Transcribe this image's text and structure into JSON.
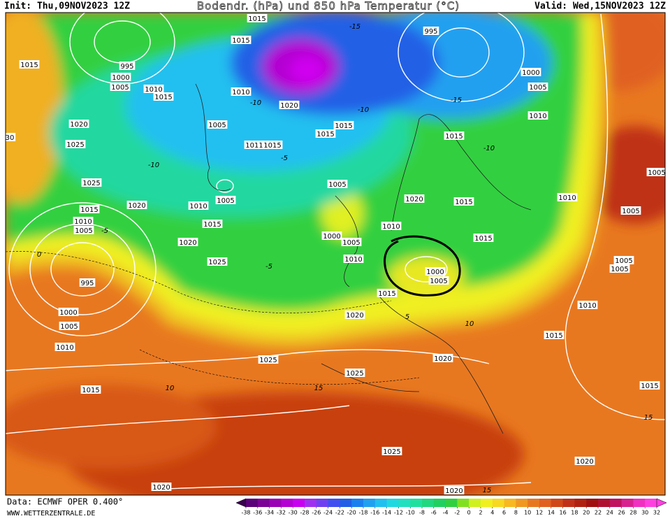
{
  "header": {
    "init": "Init: Thu,09NOV2023 12Z",
    "title": "Bodendr. (hPa) und 850 hPa Temperatur (°C)",
    "valid": "Valid: Wed,15NOV2023 12Z"
  },
  "footer": {
    "data": "Data: ECMWF OPER 0.400°",
    "site": "WWW.WETTERZENTRALE.DE"
  },
  "map": {
    "isobar_labels": [
      "1015",
      "1015",
      "995",
      "1015",
      "995",
      "1000",
      "1005",
      "1010",
      "1015",
      "1010",
      "1000",
      "1005",
      "1020",
      "1010",
      "1020",
      "1005",
      "1015",
      "1015",
      "1015",
      "1025",
      "1011",
      "1015",
      "1005",
      "1025",
      "1005",
      "1005",
      "1020",
      "1010",
      "1020",
      "1015",
      "1010",
      "1015",
      "1005",
      "1015",
      "1010",
      "1005",
      "1010",
      "1000",
      "1005",
      "1015",
      "1020",
      "1010",
      "1025",
      "1005",
      "1005",
      "1000",
      "995",
      "1005",
      "1015",
      "1010",
      "1000",
      "1020",
      "1005",
      "1015",
      "1010",
      "1020",
      "1025",
      "1025",
      "1015",
      "1015",
      "1025",
      "1020",
      "1020",
      "1020",
      "30"
    ],
    "temperature_labels": [
      "-15",
      "-15",
      "-10",
      "-10",
      "-10",
      "-5",
      "-10",
      "-5",
      "0",
      "-5",
      "5",
      "10",
      "10",
      "15",
      "15",
      "15"
    ]
  },
  "colorbar": {
    "ticks": [
      -38,
      -36,
      -34,
      -32,
      -30,
      -28,
      -26,
      -24,
      -22,
      -20,
      -18,
      -16,
      -14,
      -12,
      -10,
      -8,
      -6,
      -4,
      -2,
      0,
      2,
      4,
      6,
      8,
      10,
      12,
      14,
      16,
      18,
      20,
      22,
      24,
      26,
      28,
      30,
      32
    ],
    "colors": [
      "#3a0050",
      "#5a0078",
      "#7a0096",
      "#9a00b4",
      "#b400d2",
      "#c800f0",
      "#a030f0",
      "#7040f0",
      "#4050f0",
      "#2060e6",
      "#1a80f0",
      "#20a0f0",
      "#20c0f0",
      "#20d8e0",
      "#20e0c0",
      "#20e0a0",
      "#20d880",
      "#20d060",
      "#30d040",
      "#80e020",
      "#d0f020",
      "#f0f020",
      "#f8d820",
      "#f8b820",
      "#f09820",
      "#e87820",
      "#e06020",
      "#d04818",
      "#c03018",
      "#b02010",
      "#a01010",
      "#b01030",
      "#c01060",
      "#d82090",
      "#f030c0",
      "#ff40e0"
    ]
  }
}
